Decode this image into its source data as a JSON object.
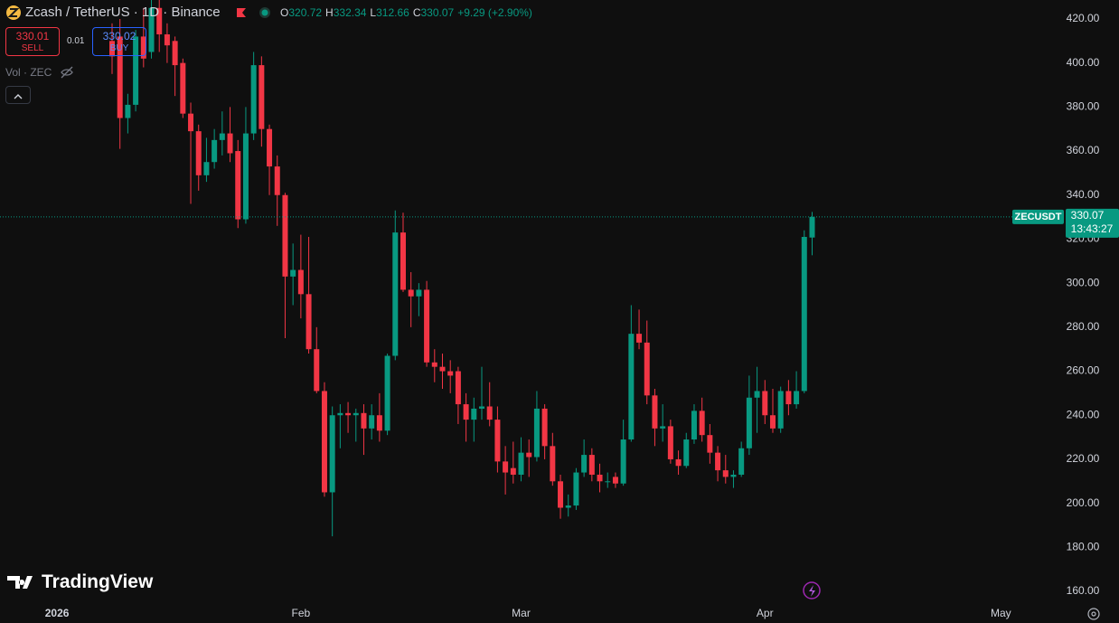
{
  "chart_data": {
    "type": "candlestick",
    "title": "Zcash / TetherUS · 1D · Binance",
    "ohlc_legend": [
      {
        "label": "O",
        "value": 320.72
      },
      {
        "label": "H",
        "value": 332.34
      },
      {
        "label": "L",
        "value": 312.66
      },
      {
        "label": "C",
        "value": 330.07
      }
    ],
    "change": "+9.29 (+2.90%)",
    "sell": {
      "price": 330.01,
      "label": "SELL"
    },
    "spread": 0.01,
    "buy": {
      "price": 330.02,
      "label": "BUY"
    },
    "volume_label": "Vol · ZEC",
    "branding": "TradingView",
    "last_price": {
      "symbol": "ZECUSDT",
      "value": 330.07,
      "countdown": "13:43:27"
    },
    "up_color": "#089981",
    "down_color": "#f23645",
    "open": [
      410,
      412,
      375,
      381,
      412,
      405,
      425,
      413,
      410,
      400,
      377,
      369,
      349,
      355,
      365,
      368,
      360,
      329,
      368,
      399,
      370,
      353,
      340,
      303,
      306,
      295,
      270,
      251,
      205,
      240,
      241,
      240,
      241,
      234,
      240,
      233,
      267,
      323,
      297,
      294,
      297,
      264,
      262,
      260,
      260,
      245,
      238,
      243,
      244,
      238,
      219,
      216,
      213,
      223,
      221,
      243,
      226,
      210,
      198,
      199,
      214,
      222,
      213,
      210,
      212,
      209,
      229,
      277,
      273,
      249,
      234,
      235,
      220,
      217,
      229,
      242,
      231,
      223,
      215,
      212,
      213,
      225,
      248,
      251,
      240,
      234,
      251,
      245,
      251,
      320.72
    ],
    "high": [
      418,
      420,
      386,
      415,
      425,
      430,
      430,
      418,
      412,
      402,
      382,
      372,
      366,
      370,
      378,
      380,
      365,
      380,
      405,
      403,
      372,
      358,
      341,
      318,
      322,
      321,
      280,
      255,
      244,
      245,
      246,
      243,
      245,
      245,
      250,
      268,
      333,
      332,
      305,
      300,
      301,
      270,
      268,
      265,
      262,
      250,
      248,
      262,
      255,
      244,
      226,
      228,
      230,
      229,
      251,
      245,
      232,
      213,
      204,
      216,
      229,
      225,
      218,
      214,
      214,
      238,
      290,
      288,
      283,
      252,
      245,
      238,
      224,
      232,
      245,
      248,
      236,
      226,
      222,
      215,
      228,
      258,
      262,
      256,
      252,
      253,
      256,
      260,
      324,
      332.34
    ],
    "low": [
      395,
      361,
      368,
      378,
      398,
      402,
      405,
      400,
      385,
      375,
      336,
      342,
      346,
      352,
      358,
      355,
      325,
      327,
      365,
      362,
      340,
      326,
      275,
      290,
      284,
      268,
      250,
      203,
      185,
      225,
      232,
      228,
      222,
      229,
      228,
      231,
      265,
      296,
      280,
      285,
      262,
      255,
      252,
      250,
      236,
      228,
      228,
      238,
      235,
      214,
      204,
      209,
      210,
      212,
      219,
      220,
      208,
      193,
      194,
      197,
      212,
      210,
      205,
      207,
      207,
      208,
      228,
      270,
      245,
      226,
      228,
      218,
      213,
      216,
      227,
      228,
      218,
      210,
      209,
      207,
      212,
      222,
      232,
      236,
      232,
      232,
      240,
      243,
      250,
      312.66
    ],
    "close": [
      403,
      375,
      381,
      412,
      402,
      425,
      413,
      408,
      399,
      377,
      369,
      349,
      355,
      365,
      368,
      359,
      329,
      368,
      399,
      370,
      353,
      340,
      303,
      306,
      295,
      270,
      251,
      205,
      240,
      241,
      240,
      241,
      234,
      240,
      233,
      267,
      323,
      297,
      294,
      297,
      264,
      262,
      260,
      258,
      245,
      238,
      243,
      244,
      238,
      219,
      214,
      213,
      223,
      221,
      243,
      226,
      210,
      198,
      199,
      214,
      222,
      213,
      210,
      210,
      209,
      229,
      277,
      273,
      249,
      234,
      235,
      220,
      217,
      229,
      242,
      231,
      223,
      215,
      212,
      213,
      225,
      248,
      251,
      240,
      234,
      251,
      245,
      251,
      321,
      330.07
    ],
    "xlim": [
      -14.25,
      120.2
    ],
    "xticks": [
      {
        "value": -7,
        "label": "2026"
      },
      {
        "value": 24,
        "label": "Feb"
      },
      {
        "value": 52,
        "label": "Mar"
      },
      {
        "value": 83,
        "label": "Apr"
      },
      {
        "value": 113,
        "label": "May"
      }
    ],
    "ylim": [
      155.5,
      428.6
    ],
    "yticks": [
      {
        "value": 160,
        "label": "160.00"
      },
      {
        "value": 180,
        "label": "180.00"
      },
      {
        "value": 200,
        "label": "200.00"
      },
      {
        "value": 220,
        "label": "220.00"
      },
      {
        "value": 240,
        "label": "240.00"
      },
      {
        "value": 260,
        "label": "260.00"
      },
      {
        "value": 280,
        "label": "280.00"
      },
      {
        "value": 300,
        "label": "300.00"
      },
      {
        "value": 320,
        "label": "320.00"
      },
      {
        "value": 340,
        "label": "340.00"
      },
      {
        "value": 360,
        "label": "360.00"
      },
      {
        "value": 380,
        "label": "380.00"
      },
      {
        "value": 400,
        "label": "400.00"
      },
      {
        "value": 420,
        "label": "420.00"
      }
    ],
    "grid": false
  }
}
